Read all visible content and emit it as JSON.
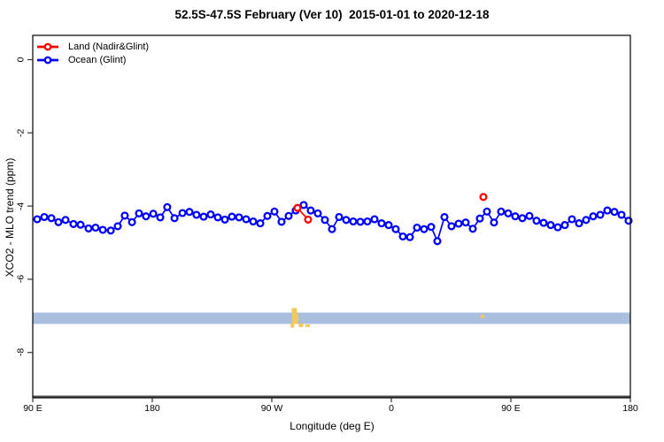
{
  "title": "52.5S-47.5S February (Ver 10)  2015-01-01 to 2020-12-18",
  "legend": {
    "items": [
      {
        "label": "Land (Nadir&Glint)",
        "color": "#ff0000"
      },
      {
        "label": "Ocean (Glint)",
        "color": "#0000ff"
      }
    ]
  },
  "chart_data": {
    "type": "line",
    "title": "52.5S-47.5S February (Ver 10)  2015-01-01 to 2020-12-18",
    "xlabel": "Longitude (deg E)",
    "ylabel": "XCO2 - MLO trend (ppm)",
    "x_span_deg": [
      0,
      450
    ],
    "ylim": [
      -9.2,
      0.65
    ],
    "grid": false,
    "legend_position": "top-left-inside",
    "x_ticks": [
      {
        "t": 0,
        "label": "90 E"
      },
      {
        "t": 90,
        "label": "180"
      },
      {
        "t": 180,
        "label": "90 W"
      },
      {
        "t": 270,
        "label": "0"
      },
      {
        "t": 360,
        "label": "90 E"
      },
      {
        "t": 450,
        "label": "180"
      }
    ],
    "y_ticks": [
      {
        "v": 0,
        "label": "0"
      },
      {
        "v": -2,
        "label": "-2"
      },
      {
        "v": -4,
        "label": "-4"
      },
      {
        "v": -6,
        "label": "-6"
      },
      {
        "v": -8,
        "label": "-8"
      }
    ],
    "series": [
      {
        "name": "Land (Nadir&Glint)",
        "color": "#ff0000",
        "groups": [
          [
            [
              199.3,
              -4.05
            ],
            [
              207.3,
              -4.37
            ]
          ],
          [
            [
              339.3,
              -3.75
            ]
          ]
        ]
      },
      {
        "name": "Ocean (Glint)",
        "color": "#0000ff",
        "points": [
          [
            3.3,
            -4.36
          ],
          [
            8.7,
            -4.3
          ],
          [
            14.0,
            -4.33
          ],
          [
            19.3,
            -4.44
          ],
          [
            24.7,
            -4.38
          ],
          [
            30.7,
            -4.49
          ],
          [
            36.0,
            -4.51
          ],
          [
            42.0,
            -4.61
          ],
          [
            47.3,
            -4.59
          ],
          [
            52.7,
            -4.65
          ],
          [
            58.7,
            -4.67
          ],
          [
            64.0,
            -4.55
          ],
          [
            69.3,
            -4.26
          ],
          [
            74.7,
            -4.44
          ],
          [
            80.0,
            -4.2
          ],
          [
            85.3,
            -4.28
          ],
          [
            90.7,
            -4.21
          ],
          [
            96.0,
            -4.31
          ],
          [
            101.3,
            -4.03
          ],
          [
            106.7,
            -4.33
          ],
          [
            112.7,
            -4.19
          ],
          [
            118.0,
            -4.16
          ],
          [
            123.3,
            -4.24
          ],
          [
            128.7,
            -4.29
          ],
          [
            134.0,
            -4.23
          ],
          [
            139.3,
            -4.31
          ],
          [
            144.7,
            -4.37
          ],
          [
            150.0,
            -4.29
          ],
          [
            155.3,
            -4.31
          ],
          [
            160.7,
            -4.36
          ],
          [
            166.0,
            -4.42
          ],
          [
            171.3,
            -4.47
          ],
          [
            176.7,
            -4.27
          ],
          [
            182.0,
            -4.15
          ],
          [
            187.3,
            -4.43
          ],
          [
            192.7,
            -4.27
          ],
          [
            198.0,
            -4.12
          ],
          [
            204.0,
            -3.97
          ],
          [
            209.3,
            -4.12
          ],
          [
            214.7,
            -4.2
          ],
          [
            220.0,
            -4.38
          ],
          [
            225.3,
            -4.63
          ],
          [
            230.7,
            -4.3
          ],
          [
            236.0,
            -4.38
          ],
          [
            241.3,
            -4.42
          ],
          [
            246.7,
            -4.43
          ],
          [
            252.0,
            -4.42
          ],
          [
            257.3,
            -4.36
          ],
          [
            262.7,
            -4.47
          ],
          [
            268.0,
            -4.52
          ],
          [
            273.3,
            -4.63
          ],
          [
            278.7,
            -4.83
          ],
          [
            284.0,
            -4.85
          ],
          [
            289.3,
            -4.59
          ],
          [
            294.7,
            -4.63
          ],
          [
            300.0,
            -4.57
          ],
          [
            304.7,
            -4.96
          ],
          [
            310.0,
            -4.3
          ],
          [
            315.3,
            -4.55
          ],
          [
            320.7,
            -4.48
          ],
          [
            326.0,
            -4.45
          ],
          [
            331.3,
            -4.62
          ],
          [
            336.7,
            -4.34
          ],
          [
            342.0,
            -4.15
          ],
          [
            347.3,
            -4.45
          ],
          [
            352.7,
            -4.15
          ],
          [
            358.0,
            -4.2
          ],
          [
            363.3,
            -4.28
          ],
          [
            368.7,
            -4.33
          ],
          [
            374.0,
            -4.27
          ],
          [
            379.3,
            -4.4
          ],
          [
            384.7,
            -4.46
          ],
          [
            390.0,
            -4.52
          ],
          [
            395.3,
            -4.58
          ],
          [
            400.7,
            -4.52
          ],
          [
            406.0,
            -4.36
          ],
          [
            411.3,
            -4.47
          ],
          [
            416.7,
            -4.38
          ],
          [
            422.0,
            -4.28
          ],
          [
            427.3,
            -4.24
          ],
          [
            432.7,
            -4.12
          ],
          [
            438.0,
            -4.16
          ],
          [
            443.3,
            -4.24
          ],
          [
            448.7,
            -4.4
          ]
        ]
      }
    ],
    "band": {
      "v_top": -6.91,
      "v_bottom": -7.22,
      "color": "#a9bfdd"
    },
    "yellow_color": "#f1c95c",
    "yellow_marks": [
      {
        "t": 197.0,
        "v": -6.86,
        "w": 6,
        "h": 6
      },
      {
        "t": 197.5,
        "v": -7.08,
        "w": 7,
        "h": 12
      },
      {
        "t": 195.5,
        "v": -7.26,
        "w": 4,
        "h": 5
      },
      {
        "t": 202.0,
        "v": -7.26,
        "w": 5,
        "h": 4
      },
      {
        "t": 207.0,
        "v": -7.27,
        "w": 5,
        "h": 3
      },
      {
        "t": 338.7,
        "v": -7.02,
        "w": 4,
        "h": 4
      }
    ]
  }
}
